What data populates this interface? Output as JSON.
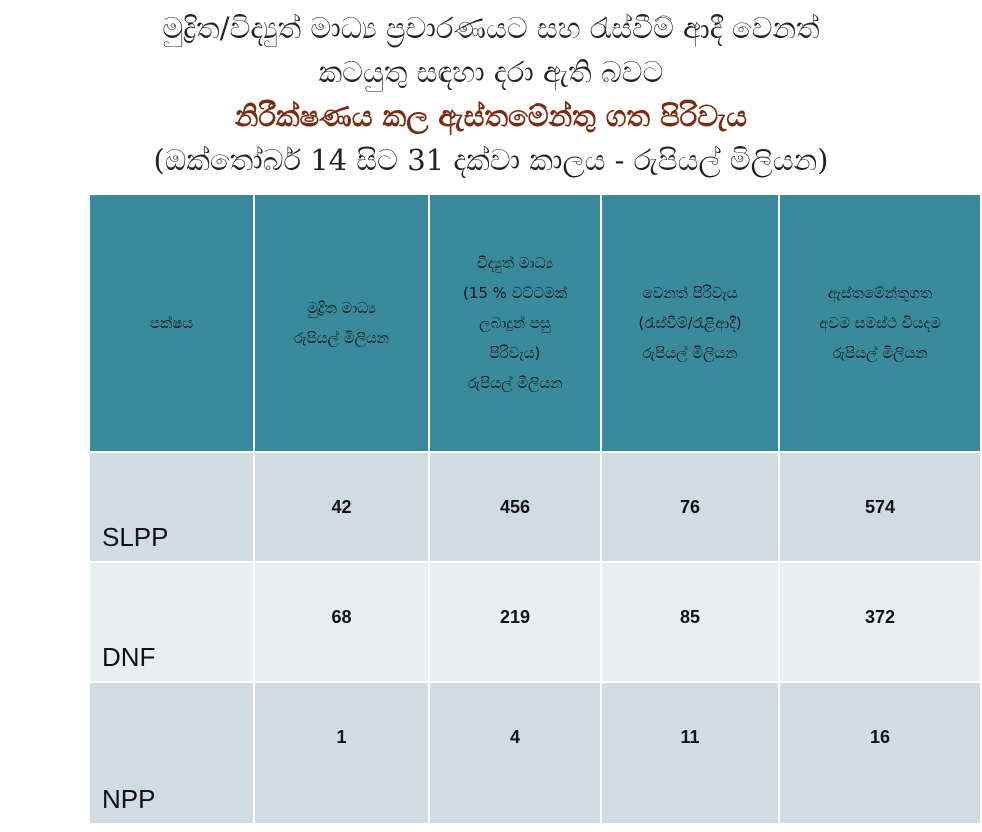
{
  "title": {
    "lines": [
      "මුද්‍රිත/විද්‍යුත් මාධ්‍ය ප්‍රචාරණයට සහ රැස්වීම් ආදී වෙනත්",
      "කටයුතු සඳහා දරා ඇති බවට"
    ],
    "bold": "නිරීක්ෂණය කල ඇස්තමේන්තු ගත පිරිවැය",
    "sub": "(ඔක්තෝබර් 14 සිට 31 දක්වා කාලය - රුපියල් මිලියන)"
  },
  "table": {
    "header": [
      [
        "පක්ෂය"
      ],
      [
        "මුද්‍රිත මාධ්‍ය",
        "රුපියල් මිලියන"
      ],
      [
        "විද්‍යුත් මාධ්‍ය",
        "(15 % වට්ටමක්",
        "ලබාදුන් පසු",
        "පිරිවැය)",
        "රුපියල් මිලියන"
      ],
      [
        "වෙනත් පිරිවැය",
        "(රැස්වීම්/රැළිආදී)",
        "රුපියල් මිලියන"
      ],
      [
        "ඇස්තමේන්තුගත",
        "අවම සමස්ථ වියදම",
        "රුපියල් මිලියන"
      ]
    ],
    "rows": [
      [
        "SLPP",
        42,
        456,
        76,
        574
      ],
      [
        "DNF",
        68,
        219,
        85,
        372
      ],
      [
        "NPP",
        1,
        4,
        11,
        16
      ]
    ]
  }
}
